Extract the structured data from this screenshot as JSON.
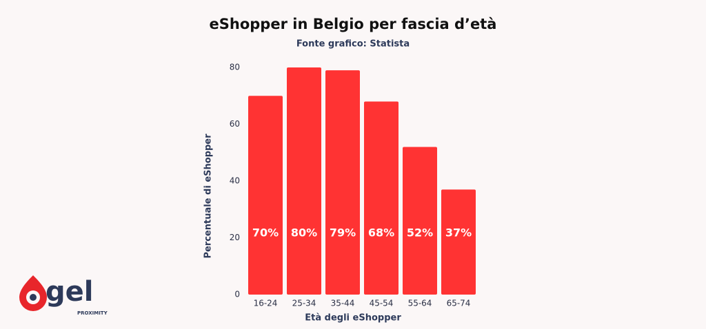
{
  "chart_data": {
    "type": "bar",
    "title": "eShopper in Belgio per fascia d’età",
    "subtitle": "Fonte grafico: Statista",
    "x_label": "Età degli eShopper",
    "y_label": "Percentuale di eShopper",
    "categories": [
      "16-24",
      "25-34",
      "35-44",
      "45-54",
      "55-64",
      "65-74"
    ],
    "values": [
      70,
      80,
      79,
      68,
      52,
      37
    ],
    "value_labels": [
      "70%",
      "80%",
      "79%",
      "68%",
      "52%",
      "37%"
    ],
    "color": "#ff3333",
    "ylim": [
      0,
      80
    ],
    "yticks": [
      0,
      20,
      40,
      60,
      80
    ],
    "grid": false
  },
  "logo": {
    "text": "gel",
    "subtitle": "PROXIMITY"
  }
}
